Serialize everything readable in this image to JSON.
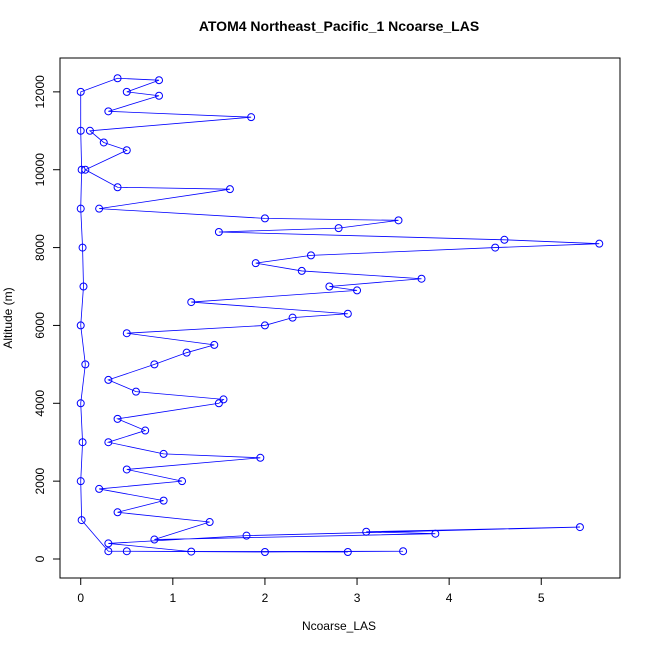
{
  "chart_data": {
    "type": "line",
    "title": "ATOM4 Northeast_Pacific_1 Ncoarse_LAS",
    "x_label": "Ncoarse_LAS",
    "y_label": "Altitude (m)",
    "color": "#0000ff",
    "x": [
      0.5,
      2.0,
      3.5,
      1.2,
      0.3,
      1.8,
      5.42,
      3.1,
      3.85,
      0.8,
      1.4,
      0.4,
      0.9,
      0.2,
      1.1,
      0.5,
      1.95,
      0.9,
      0.3,
      0.7,
      0.4,
      1.5,
      1.55,
      0.6,
      0.3,
      0.8,
      1.15,
      1.45,
      0.5,
      2.0,
      2.3,
      2.9,
      1.2,
      3.0,
      2.7,
      3.7,
      2.4,
      1.9,
      2.5,
      4.5,
      5.63,
      4.6,
      1.5,
      2.8,
      3.45,
      2.0,
      0.2,
      1.62,
      0.4,
      0.05,
      0.5,
      0.25,
      0.1,
      1.85,
      0.3,
      0.85,
      0.5,
      0.85,
      0.4,
      0.0,
      0.0,
      0.01,
      0.0,
      0.02,
      0.03,
      0.0,
      0.05,
      0.0,
      0.02,
      0.0,
      0.01,
      0.3,
      2.9
    ],
    "y": [
      200,
      180,
      200,
      190,
      400,
      600,
      820,
      700,
      650,
      500,
      950,
      1200,
      1500,
      1800,
      2000,
      2300,
      2600,
      2700,
      3000,
      3300,
      3600,
      4000,
      4100,
      4300,
      4600,
      5000,
      5300,
      5500,
      5800,
      6000,
      6200,
      6300,
      6600,
      6900,
      7000,
      7200,
      7400,
      7600,
      7800,
      8000,
      8100,
      8200,
      8400,
      8500,
      8700,
      8750,
      9000,
      9500,
      9550,
      10000,
      10500,
      10700,
      11000,
      11350,
      11500,
      11900,
      12000,
      12300,
      12350,
      12000,
      11000,
      10000,
      9000,
      8000,
      7000,
      6000,
      5000,
      4000,
      3000,
      2000,
      1000,
      200,
      180
    ],
    "xlim": [
      -0.225,
      5.855
    ],
    "ylim": [
      -488,
      12870
    ],
    "xticks": [
      0,
      1,
      2,
      3,
      4,
      5
    ],
    "yticks": [
      0,
      2000,
      4000,
      6000,
      8000,
      10000,
      12000
    ]
  }
}
